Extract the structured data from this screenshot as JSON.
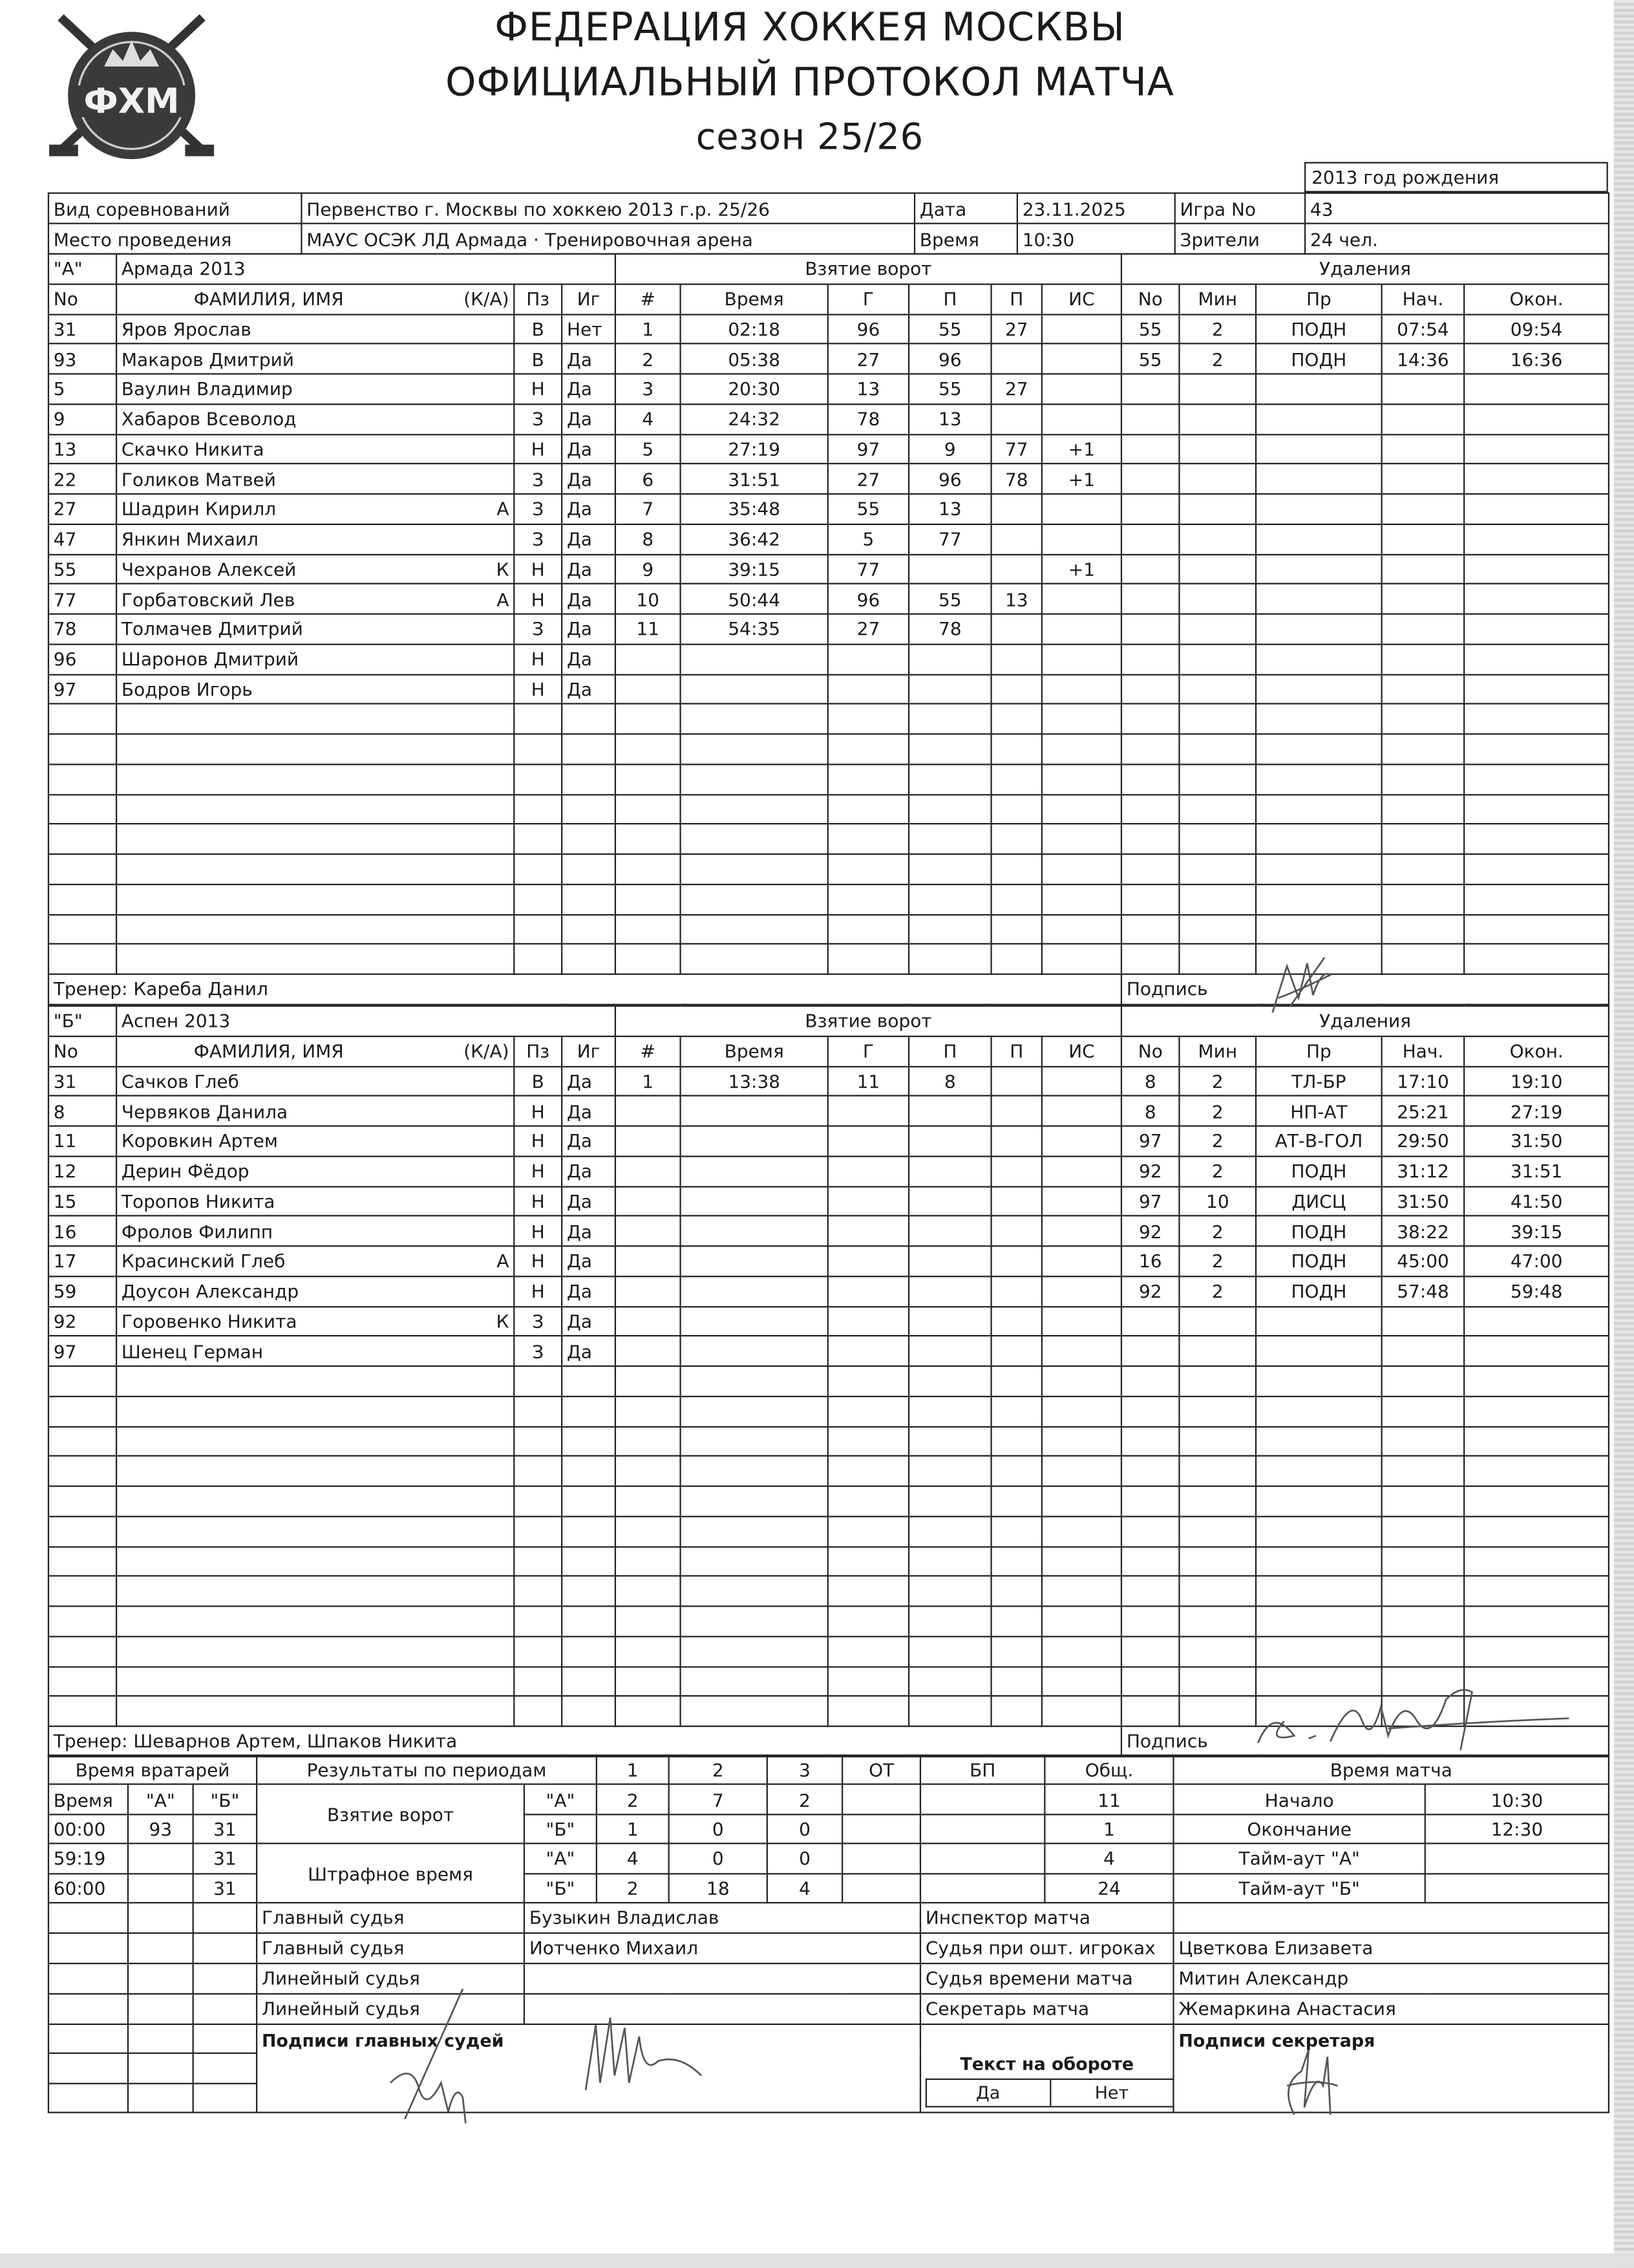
{
  "header": {
    "logo_text": "ФХМ",
    "title_line1": "ФЕДЕРАЦИЯ ХОККЕЯ МОСКВЫ",
    "title_line2": "ОФИЦИАЛЬНЫЙ ПРОТОКОЛ МАТЧА",
    "season": "сезон 25/26",
    "birth_year": "2013 год рождения"
  },
  "info": {
    "competition_label": "Вид соревнований",
    "competition": "Первенство г. Москвы по хоккею 2013 г.р. 25/26",
    "date_label": "Дата",
    "date": "23.11.2025",
    "game_label": "Игра No",
    "game": "43",
    "venue_label": "Место проведения",
    "venue": "МАУС ОСЭК ЛД Армада · Тренировочная арена",
    "time_label": "Время",
    "time": "10:30",
    "spectators_label": "Зрители",
    "spectators": "24 чел."
  },
  "columns": {
    "no": "No",
    "name": "ФАМИЛИЯ, ИМЯ",
    "ka": "(К/А)",
    "pos": "Пз",
    "played": "Иг",
    "goal_num": "#",
    "goal_time": "Время",
    "goal_scorer": "Г",
    "assist1": "П",
    "assist2": "П",
    "is": "ИС",
    "pen_no": "No",
    "pen_min": "Мин",
    "pen_type": "Пр",
    "pen_start": "Нач.",
    "pen_end": "Окон.",
    "goals_section": "Взятие ворот",
    "penalties_section": "Удаления",
    "signature": "Подпись"
  },
  "teams": [
    {
      "label": "\"А\"",
      "name": "Армада 2013",
      "coach": "Тренер: Кареба Данил",
      "players": [
        [
          "31",
          "Яров Ярослав",
          "",
          "В",
          "Нет"
        ],
        [
          "93",
          "Макаров Дмитрий",
          "",
          "В",
          "Да"
        ],
        [
          "5",
          "Ваулин Владимир",
          "",
          "Н",
          "Да"
        ],
        [
          "9",
          "Хабаров Всеволод",
          "",
          "З",
          "Да"
        ],
        [
          "13",
          "Скачко Никита",
          "",
          "Н",
          "Да"
        ],
        [
          "22",
          "Голиков Матвей",
          "",
          "З",
          "Да"
        ],
        [
          "27",
          "Шадрин Кирилл",
          "А",
          "З",
          "Да"
        ],
        [
          "47",
          "Янкин Михаил",
          "",
          "З",
          "Да"
        ],
        [
          "55",
          "Чехранов Алексей",
          "К",
          "Н",
          "Да"
        ],
        [
          "77",
          "Горбатовский Лев",
          "А",
          "Н",
          "Да"
        ],
        [
          "78",
          "Толмачев Дмитрий",
          "",
          "З",
          "Да"
        ],
        [
          "96",
          "Шаронов Дмитрий",
          "",
          "Н",
          "Да"
        ],
        [
          "97",
          "Бодров Игорь",
          "",
          "Н",
          "Да"
        ]
      ],
      "goals": [
        [
          "1",
          "02:18",
          "96",
          "55",
          "27",
          ""
        ],
        [
          "2",
          "05:38",
          "27",
          "96",
          "",
          ""
        ],
        [
          "3",
          "20:30",
          "13",
          "55",
          "27",
          ""
        ],
        [
          "4",
          "24:32",
          "78",
          "13",
          "",
          ""
        ],
        [
          "5",
          "27:19",
          "97",
          "9",
          "77",
          "+1"
        ],
        [
          "6",
          "31:51",
          "27",
          "96",
          "78",
          "+1"
        ],
        [
          "7",
          "35:48",
          "55",
          "13",
          "",
          ""
        ],
        [
          "8",
          "36:42",
          "5",
          "77",
          "",
          ""
        ],
        [
          "9",
          "39:15",
          "77",
          "",
          "",
          "+1"
        ],
        [
          "10",
          "50:44",
          "96",
          "55",
          "13",
          ""
        ],
        [
          "11",
          "54:35",
          "27",
          "78",
          "",
          ""
        ]
      ],
      "penalties": [
        [
          "55",
          "2",
          "ПОДН",
          "07:54",
          "09:54"
        ],
        [
          "55",
          "2",
          "ПОДН",
          "14:36",
          "16:36"
        ]
      ]
    },
    {
      "label": "\"Б\"",
      "name": "Аспен 2013",
      "coach": "Тренер: Шеварнов Артем, Шпаков Никита",
      "players": [
        [
          "31",
          "Сачков Глеб",
          "",
          "В",
          "Да"
        ],
        [
          "8",
          "Червяков Данила",
          "",
          "Н",
          "Да"
        ],
        [
          "11",
          "Коровкин Артем",
          "",
          "Н",
          "Да"
        ],
        [
          "12",
          "Дерин Фёдор",
          "",
          "Н",
          "Да"
        ],
        [
          "15",
          "Торопов Никита",
          "",
          "Н",
          "Да"
        ],
        [
          "16",
          "Фролов Филипп",
          "",
          "Н",
          "Да"
        ],
        [
          "17",
          "Красинский Глеб",
          "А",
          "Н",
          "Да"
        ],
        [
          "59",
          "Доусон Александр",
          "",
          "Н",
          "Да"
        ],
        [
          "92",
          "Горовенко Никита",
          "К",
          "З",
          "Да"
        ],
        [
          "97",
          "Шенец Герман",
          "",
          "З",
          "Да"
        ]
      ],
      "goals": [
        [
          "1",
          "13:38",
          "11",
          "8",
          "",
          ""
        ]
      ],
      "penalties": [
        [
          "8",
          "2",
          "ТЛ-БР",
          "17:10",
          "19:10"
        ],
        [
          "8",
          "2",
          "НП-АТ",
          "25:21",
          "27:19"
        ],
        [
          "97",
          "2",
          "АТ-В-ГОЛ",
          "29:50",
          "31:50"
        ],
        [
          "92",
          "2",
          "ПОДН",
          "31:12",
          "31:51"
        ],
        [
          "97",
          "10",
          "ДИСЦ",
          "31:50",
          "41:50"
        ],
        [
          "92",
          "2",
          "ПОДН",
          "38:22",
          "39:15"
        ],
        [
          "16",
          "2",
          "ПОДН",
          "45:00",
          "47:00"
        ],
        [
          "92",
          "2",
          "ПОДН",
          "57:48",
          "59:48"
        ]
      ]
    }
  ],
  "summary": {
    "goalie_header": "Время вратарей",
    "goalie_cols": [
      "Время",
      "\"А\"",
      "\"Б\""
    ],
    "goalie_rows": [
      [
        "00:00",
        "93",
        "31"
      ],
      [
        "59:19",
        "",
        "31"
      ],
      [
        "60:00",
        "",
        "31"
      ]
    ],
    "periods_header": "Результаты по периодам",
    "period_cols": [
      "1",
      "2",
      "3",
      "ОТ",
      "БП",
      "Общ."
    ],
    "goals_label": "Взятие ворот",
    "penalty_label": "Штрафное время",
    "team_a": "\"А\"",
    "team_b": "\"Б\"",
    "goals_a": [
      "2",
      "7",
      "2",
      "",
      "",
      "11"
    ],
    "goals_b": [
      "1",
      "0",
      "0",
      "",
      "",
      "1"
    ],
    "pen_a": [
      "4",
      "0",
      "0",
      "",
      "",
      "4"
    ],
    "pen_b": [
      "2",
      "18",
      "4",
      "",
      "",
      "24"
    ],
    "match_time_header": "Время матча",
    "match_time": [
      [
        "Начало",
        "10:30"
      ],
      [
        "Окончание",
        "12:30"
      ],
      [
        "Тайм-аут \"А\"",
        ""
      ],
      [
        "Тайм-аут \"Б\"",
        ""
      ]
    ]
  },
  "officials": {
    "left": [
      [
        "Главный судья",
        "Бузыкин Владислав"
      ],
      [
        "Главный судья",
        "Иотченко Михаил"
      ],
      [
        "Линейный судья",
        ""
      ],
      [
        "Линейный судья",
        ""
      ]
    ],
    "right": [
      [
        "Инспектор матча",
        ""
      ],
      [
        "Судья при ошт. игроках",
        "Цветкова Елизавета"
      ],
      [
        "Судья времени матча",
        "Митин Александр"
      ],
      [
        "Секретарь матча",
        "Жемаркина Анастасия"
      ]
    ],
    "referee_signatures": "Подписи главных судей",
    "reverse_text": "Текст на обороте",
    "yes": "Да",
    "no": "Нет",
    "secretary_signature": "Подписи секретаря"
  }
}
